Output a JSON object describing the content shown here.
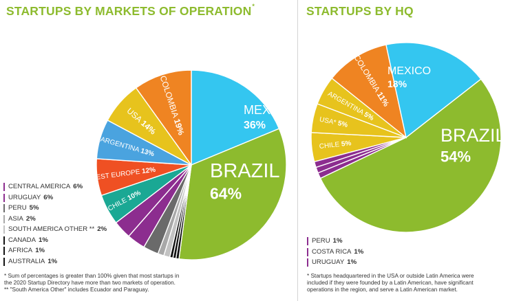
{
  "titles": {
    "left": "STARTUPS BY MARKETS OF OPERATION",
    "left_mark": "*",
    "right": "STARTUPS BY HQ"
  },
  "chart_data": [
    {
      "type": "pie",
      "title": "STARTUPS BY MARKETS OF OPERATION",
      "slices": [
        {
          "label": "MEXICO",
          "value": 36,
          "display": "36%",
          "color": "#34c6f0"
        },
        {
          "label": "BRAZIL",
          "value": 64,
          "display": "64%",
          "color": "#8dbb2e"
        },
        {
          "label": "AUSTRALIA",
          "value": 1,
          "display": "1%",
          "color": "#111111"
        },
        {
          "label": "AFRICA",
          "value": 1,
          "display": "1%",
          "color": "#111111"
        },
        {
          "label": "CANADA",
          "value": 1,
          "display": "1%",
          "color": "#111111"
        },
        {
          "label": "SOUTH AMERICA OTHER",
          "value": 2,
          "display": "2%",
          "color": "#c2c2c2"
        },
        {
          "label": "ASIA",
          "value": 2,
          "display": "2%",
          "color": "#a8a8a8"
        },
        {
          "label": "PERU",
          "value": 5,
          "display": "5%",
          "color": "#6a6a6a"
        },
        {
          "label": "URUGUAY",
          "value": 6,
          "display": "6%",
          "color": "#8c2d8f"
        },
        {
          "label": "CENTRAL AMERICA",
          "value": 6,
          "display": "6%",
          "color": "#8c2d8f"
        },
        {
          "label": "CHILE",
          "value": 10,
          "display": "10%",
          "color": "#1aa894"
        },
        {
          "label": "WEST EUROPE",
          "value": 12,
          "display": "12%",
          "color": "#ef5023"
        },
        {
          "label": "ARGENTINA",
          "value": 13,
          "display": "13%",
          "color": "#4aa3df"
        },
        {
          "label": "USA",
          "value": 14,
          "display": "14%",
          "color": "#e7c31d"
        },
        {
          "label": "COLOMBIA",
          "value": 19,
          "display": "19%",
          "color": "#ef8422"
        }
      ],
      "legend": [
        {
          "label": "CENTRAL AMERICA",
          "value": "6%",
          "color": "#8c2d8f"
        },
        {
          "label": "URUGUAY",
          "value": "6%",
          "color": "#8c2d8f"
        },
        {
          "label": "PERU",
          "value": "5%",
          "color": "#6a6a6a"
        },
        {
          "label": "ASIA",
          "value": "2%",
          "color": "#a8a8a8"
        },
        {
          "label": "SOUTH AMERICA OTHER **",
          "value": "2%",
          "color": "#c2c2c2"
        },
        {
          "label": "CANADA",
          "value": "1%",
          "color": "#111111"
        },
        {
          "label": "AFRICA",
          "value": "1%",
          "color": "#111111"
        },
        {
          "label": "AUSTRALIA",
          "value": "1%",
          "color": "#111111"
        }
      ],
      "notes": [
        "* Sum of percentages is greater than 100% given that most startups in",
        "the 2020 Startup Directory have more than two markets of operation.",
        "** \"South America Other\" includes Ecuador and Paraguay."
      ]
    },
    {
      "type": "pie",
      "title": "STARTUPS BY HQ",
      "slices": [
        {
          "label": "BRAZIL",
          "value": 54,
          "display": "54%",
          "color": "#8dbb2e"
        },
        {
          "label": "PERU",
          "value": 1,
          "display": "1%",
          "color": "#8c2d8f"
        },
        {
          "label": "COSTA RICA",
          "value": 1,
          "display": "1%",
          "color": "#8c2d8f"
        },
        {
          "label": "URUGUAY",
          "value": 1,
          "display": "1%",
          "color": "#8c2d8f"
        },
        {
          "label": "CHILE",
          "value": 5,
          "display": "5%",
          "color": "#e7c31d"
        },
        {
          "label": "USA*",
          "value": 5,
          "display": "5%",
          "color": "#e7c31d"
        },
        {
          "label": "ARGENTINA",
          "value": 5,
          "display": "5%",
          "color": "#e7c31d"
        },
        {
          "label": "COLOMBIA",
          "value": 11,
          "display": "11%",
          "color": "#ef8422"
        },
        {
          "label": "MEXICO",
          "value": 18,
          "display": "18%",
          "color": "#34c6f0"
        }
      ],
      "legend": [
        {
          "label": "PERU",
          "value": "1%",
          "color": "#8c2d8f"
        },
        {
          "label": "COSTA RICA",
          "value": "1%",
          "color": "#8c2d8f"
        },
        {
          "label": "URUGUAY",
          "value": "1%",
          "color": "#8c2d8f"
        }
      ],
      "notes": [
        "* Startups headquartered in the USA or outside Latin America were",
        "included if they were founded by a Latin American, have significant",
        "operations in the region, and serve a Latin American market."
      ]
    }
  ]
}
